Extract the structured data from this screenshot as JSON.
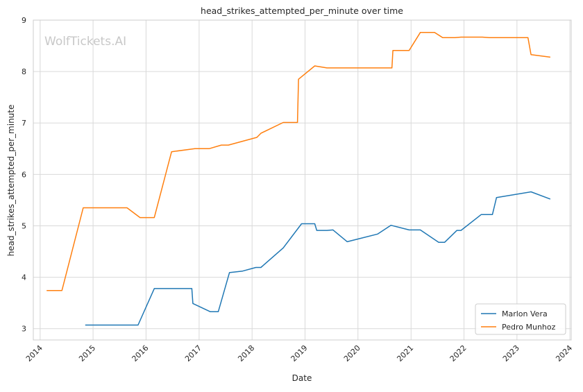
{
  "chart_data": {
    "type": "line",
    "title": "head_strikes_attempted_per_minute over time",
    "xlabel": "Date",
    "ylabel": "head_strikes_attempted_per_minute",
    "watermark": "WolfTickets.AI",
    "xlim": [
      "2013-11-15",
      "2024-01-10"
    ],
    "ylim": [
      2.78,
      9.0
    ],
    "x_ticks": [
      "2014",
      "2015",
      "2016",
      "2017",
      "2018",
      "2019",
      "2020",
      "2021",
      "2022",
      "2023",
      "2024"
    ],
    "y_ticks": [
      "3",
      "4",
      "5",
      "6",
      "7",
      "8",
      "9"
    ],
    "grid": true,
    "legend_position": "bottom-right",
    "series": [
      {
        "name": "Marlon Vera",
        "color": "#1f77b4",
        "points": [
          [
            "2014-11-08",
            3.07
          ],
          [
            "2015-11-07",
            3.07
          ],
          [
            "2016-02-27",
            3.78
          ],
          [
            "2016-11-12",
            3.78
          ],
          [
            "2016-11-19",
            3.49
          ],
          [
            "2017-03-18",
            3.33
          ],
          [
            "2017-05-13",
            3.33
          ],
          [
            "2017-07-29",
            4.09
          ],
          [
            "2017-10-28",
            4.12
          ],
          [
            "2018-01-27",
            4.19
          ],
          [
            "2018-03-03",
            4.19
          ],
          [
            "2018-08-04",
            4.57
          ],
          [
            "2018-12-08",
            5.04
          ],
          [
            "2019-03-09",
            5.04
          ],
          [
            "2019-03-23",
            4.91
          ],
          [
            "2019-06-01",
            4.91
          ],
          [
            "2019-07-13",
            4.92
          ],
          [
            "2019-10-19",
            4.69
          ],
          [
            "2020-05-16",
            4.84
          ],
          [
            "2020-08-15",
            5.01
          ],
          [
            "2020-12-19",
            4.92
          ],
          [
            "2021-03-06",
            4.92
          ],
          [
            "2021-07-10",
            4.68
          ],
          [
            "2021-08-21",
            4.68
          ],
          [
            "2021-11-13",
            4.91
          ],
          [
            "2021-12-11",
            4.91
          ],
          [
            "2022-04-30",
            5.22
          ],
          [
            "2022-07-16",
            5.22
          ],
          [
            "2022-08-13",
            5.55
          ],
          [
            "2023-04-08",
            5.66
          ],
          [
            "2023-08-19",
            5.52
          ]
        ]
      },
      {
        "name": "Pedro Munhoz",
        "color": "#ff7f0e",
        "points": [
          [
            "2014-02-15",
            3.74
          ],
          [
            "2014-05-31",
            3.74
          ],
          [
            "2014-10-25",
            5.35
          ],
          [
            "2015-08-23",
            5.35
          ],
          [
            "2015-11-21",
            5.16
          ],
          [
            "2016-02-27",
            5.16
          ],
          [
            "2016-06-25",
            6.44
          ],
          [
            "2016-12-03",
            6.5
          ],
          [
            "2017-03-11",
            6.5
          ],
          [
            "2017-06-03",
            6.57
          ],
          [
            "2017-07-22",
            6.57
          ],
          [
            "2018-02-03",
            6.72
          ],
          [
            "2018-03-03",
            6.8
          ],
          [
            "2018-08-04",
            7.01
          ],
          [
            "2018-11-10",
            7.01
          ],
          [
            "2018-11-17",
            7.85
          ],
          [
            "2019-03-09",
            8.11
          ],
          [
            "2019-06-01",
            8.07
          ],
          [
            "2020-08-22",
            8.07
          ],
          [
            "2020-08-29",
            8.41
          ],
          [
            "2020-12-19",
            8.41
          ],
          [
            "2021-03-06",
            8.76
          ],
          [
            "2021-06-12",
            8.76
          ],
          [
            "2021-08-07",
            8.66
          ],
          [
            "2021-10-30",
            8.66
          ],
          [
            "2021-12-11",
            8.67
          ],
          [
            "2022-05-07",
            8.67
          ],
          [
            "2022-06-25",
            8.66
          ],
          [
            "2023-03-18",
            8.66
          ],
          [
            "2023-04-08",
            8.33
          ],
          [
            "2023-08-19",
            8.28
          ]
        ]
      }
    ]
  }
}
